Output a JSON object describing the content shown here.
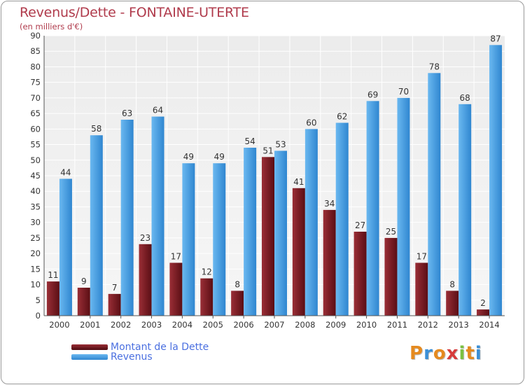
{
  "chart_data": {
    "type": "bar",
    "title": "Revenus/Dette - FONTAINE-UTERTE",
    "subtitle": "(en milliers d'€)",
    "xlabel": "",
    "ylabel": "",
    "ylim": [
      0,
      90
    ],
    "yticks": [
      0,
      5,
      10,
      15,
      20,
      25,
      30,
      35,
      40,
      45,
      50,
      55,
      60,
      65,
      70,
      75,
      80,
      85,
      90
    ],
    "grid": true,
    "legend_position": "bottom-left",
    "categories": [
      "2000",
      "2001",
      "2002",
      "2003",
      "2004",
      "2005",
      "2006",
      "2007",
      "2008",
      "2009",
      "2010",
      "2011",
      "2012",
      "2013",
      "2014"
    ],
    "series": [
      {
        "name": "Montant de la Dette",
        "color": "#7a1a22",
        "values": [
          11,
          9,
          7,
          23,
          17,
          12,
          8,
          51,
          41,
          34,
          27,
          25,
          17,
          8,
          2
        ]
      },
      {
        "name": "Revenus",
        "color": "#4aa3e8",
        "values": [
          44,
          58,
          63,
          64,
          49,
          49,
          54,
          53,
          60,
          62,
          69,
          70,
          78,
          68,
          87
        ]
      }
    ]
  },
  "brand": {
    "letters": [
      "P",
      "r",
      "o",
      "x",
      "i",
      "t",
      "i"
    ],
    "colors": [
      "#e58a1f",
      "#3b8fd6",
      "#e58a1f",
      "#d63b3b",
      "#7cc142",
      "#e58a1f",
      "#3b8fd6"
    ]
  }
}
